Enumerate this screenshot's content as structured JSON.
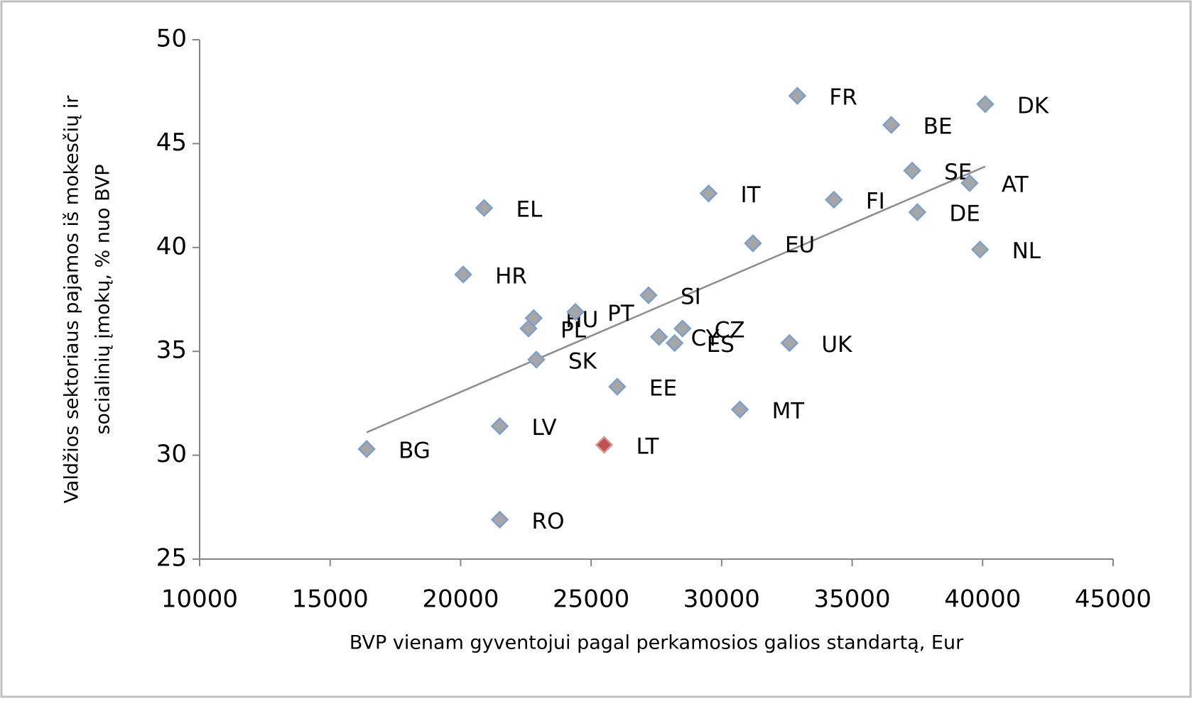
{
  "chart_data": {
    "type": "scatter",
    "x_label": "BVP vienam gyventojui pagal perkamosios galios standartą, Eur",
    "y_label": [
      "Valdžios sektoriaus pajamos iš mokesčių ir",
      "socialinių įmokų, % nuo BVP"
    ],
    "labels": [
      "FR",
      "DK",
      "BE",
      "SE",
      "AT",
      "FI",
      "DE",
      "IT",
      "EL",
      "EU",
      "NL",
      "HR",
      "SI",
      "HU",
      "PT",
      "PL",
      "CZ",
      "CY",
      "ES",
      "UK",
      "SK",
      "EE",
      "MT",
      "LV",
      "LT",
      "BG",
      "RO"
    ],
    "x": [
      32900,
      40100,
      36500,
      37300,
      39500,
      34300,
      37500,
      29500,
      20900,
      31200,
      39900,
      20100,
      27200,
      22800,
      24400,
      22600,
      28500,
      27600,
      28200,
      32600,
      22900,
      26000,
      30700,
      21500,
      25500,
      16400,
      21500
    ],
    "y": [
      47.3,
      46.9,
      45.9,
      43.7,
      43.1,
      42.3,
      41.7,
      42.6,
      41.9,
      40.2,
      39.9,
      38.7,
      37.7,
      36.6,
      36.9,
      36.1,
      36.1,
      35.7,
      35.4,
      35.4,
      34.6,
      33.3,
      32.2,
      31.4,
      30.5,
      30.3,
      26.9
    ],
    "color": "#a6a6a6",
    "highlight": {
      "label": "LT",
      "color": "#c0504d"
    },
    "trendline": {
      "x": [
        16400,
        40100
      ],
      "y": [
        31.1,
        43.9
      ],
      "color": "#8c8c8c"
    },
    "xlim": [
      10000,
      45000
    ],
    "xticks": [
      10000,
      15000,
      20000,
      25000,
      30000,
      35000,
      40000,
      45000
    ],
    "ylim": [
      25,
      50
    ],
    "yticks": [
      25,
      30,
      35,
      40,
      45,
      50
    ]
  }
}
